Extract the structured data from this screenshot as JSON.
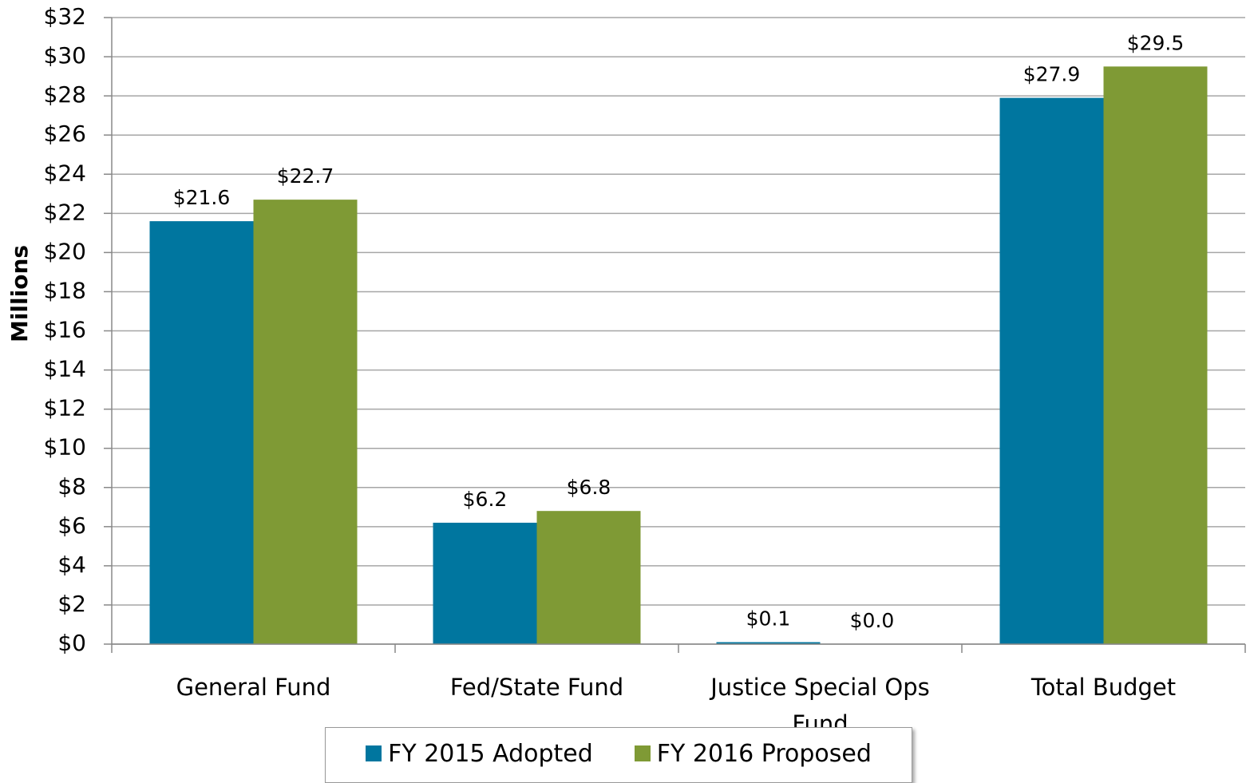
{
  "chart_data": {
    "type": "bar",
    "y_label": "Millions",
    "categories": [
      "General Fund",
      "Fed/State Fund",
      "Justice Special Ops Fund",
      "Total Budget"
    ],
    "series": [
      {
        "name": "FY 2015 Adopted",
        "color": "#00769f",
        "values": [
          21.6,
          6.2,
          0.1,
          27.9
        ],
        "value_labels": [
          "$21.6",
          "$6.2",
          "$0.1",
          "$27.9"
        ]
      },
      {
        "name": "FY 2016 Proposed",
        "color": "#7f9a35",
        "values": [
          22.7,
          6.8,
          0.0,
          29.5
        ],
        "value_labels": [
          "$22.7",
          "$6.8",
          "$0.0",
          "$29.5"
        ]
      }
    ],
    "ylim": [
      0,
      32
    ],
    "yticks": [
      {
        "value": 0,
        "label": "$0"
      },
      {
        "value": 2,
        "label": "$2"
      },
      {
        "value": 4,
        "label": "$4"
      },
      {
        "value": 6,
        "label": "$6"
      },
      {
        "value": 8,
        "label": "$8"
      },
      {
        "value": 10,
        "label": "$10"
      },
      {
        "value": 12,
        "label": "$12"
      },
      {
        "value": 14,
        "label": "$14"
      },
      {
        "value": 16,
        "label": "$16"
      },
      {
        "value": 18,
        "label": "$18"
      },
      {
        "value": 20,
        "label": "$20"
      },
      {
        "value": 22,
        "label": "$22"
      },
      {
        "value": 24,
        "label": "$24"
      },
      {
        "value": 26,
        "label": "$26"
      },
      {
        "value": 28,
        "label": "$28"
      },
      {
        "value": 30,
        "label": "$30"
      },
      {
        "value": 32,
        "label": "$32"
      }
    ],
    "grid": true,
    "legend": "bottom"
  }
}
